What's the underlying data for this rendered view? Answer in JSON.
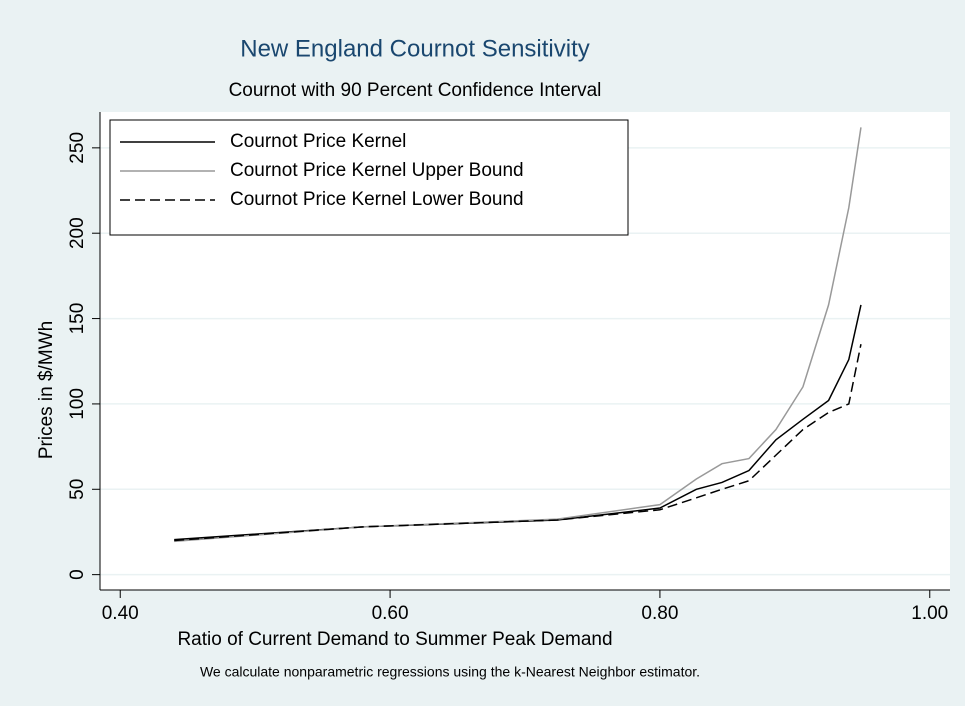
{
  "chart_data": {
    "type": "line",
    "title": "New England Cournot Sensitivity",
    "subtitle": "Cournot with 90 Percent Confidence Interval",
    "x_label": "Ratio of Current Demand to Summer Peak Demand",
    "y_label": "Prices in $/MWh",
    "note": "We calculate nonparametric regressions using the k-Nearest Neighbor estimator.",
    "x": [
      0.44,
      0.58,
      0.724,
      0.8,
      0.827,
      0.846,
      0.866,
      0.886,
      0.906,
      0.925,
      0.94,
      0.949
    ],
    "series": [
      {
        "name": "Cournot Price Kernel",
        "color": "#000000",
        "values": [
          20.5,
          28,
          32,
          39,
          50,
          54,
          61,
          79,
          91,
          102,
          126,
          158
        ]
      },
      {
        "name": "Cournot Price Kernel Upper Bound",
        "color": "#999999",
        "values": [
          19.5,
          28,
          32.5,
          41,
          56,
          65,
          68,
          85,
          110,
          158,
          215,
          262
        ]
      },
      {
        "name": "Cournot Price Kernel Lower Bound",
        "color": "#000000",
        "dashed": true,
        "values": [
          20,
          28,
          32,
          38,
          45,
          50,
          55,
          70,
          85,
          95,
          100,
          135
        ]
      }
    ],
    "xlim": [
      0.385,
      1.015
    ],
    "xticks": [
      {
        "value": 0.4,
        "label": "0.40"
      },
      {
        "value": 0.6,
        "label": "0.60"
      },
      {
        "value": 0.8,
        "label": "0.80"
      },
      {
        "value": 1.0,
        "label": "1.00"
      }
    ],
    "ylim": [
      -9,
      271
    ],
    "yticks": [
      0,
      50,
      100,
      150,
      200,
      250
    ],
    "grid": true,
    "legend": "top-left"
  }
}
